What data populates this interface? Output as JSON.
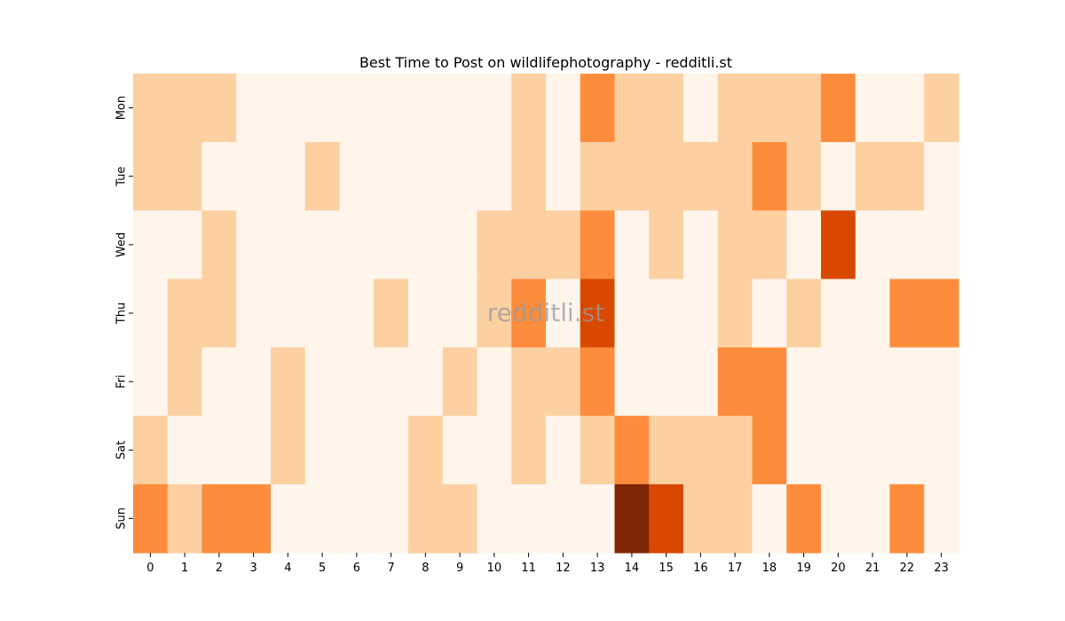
{
  "chart_data": {
    "type": "heatmap",
    "title": "Best Time to Post on wildlifephotography - redditli.st",
    "xlabel": "",
    "ylabel": "",
    "x_categories": [
      "0",
      "1",
      "2",
      "3",
      "4",
      "5",
      "6",
      "7",
      "8",
      "9",
      "10",
      "11",
      "12",
      "13",
      "14",
      "15",
      "16",
      "17",
      "18",
      "19",
      "20",
      "21",
      "22",
      "23"
    ],
    "y_categories": [
      "Mon",
      "Tue",
      "Wed",
      "Thu",
      "Fri",
      "Sat",
      "Sun"
    ],
    "colormap": "Oranges",
    "value_range": [
      0,
      4
    ],
    "values": [
      [
        1,
        1,
        1,
        0,
        0,
        0,
        0,
        0,
        0,
        0,
        0,
        1,
        0,
        2,
        1,
        1,
        0,
        1,
        1,
        1,
        2,
        0,
        0,
        1
      ],
      [
        1,
        1,
        0,
        0,
        0,
        1,
        0,
        0,
        0,
        0,
        0,
        1,
        0,
        1,
        1,
        1,
        1,
        1,
        2,
        1,
        0,
        1,
        1,
        0
      ],
      [
        0,
        0,
        1,
        0,
        0,
        0,
        0,
        0,
        0,
        0,
        1,
        1,
        1,
        2,
        0,
        1,
        0,
        1,
        1,
        0,
        3,
        0,
        0,
        0
      ],
      [
        0,
        1,
        1,
        0,
        0,
        0,
        0,
        1,
        0,
        0,
        1,
        2,
        0,
        3,
        0,
        0,
        0,
        1,
        0,
        1,
        0,
        0,
        2,
        2
      ],
      [
        0,
        1,
        0,
        0,
        1,
        0,
        0,
        0,
        0,
        1,
        0,
        1,
        1,
        2,
        0,
        0,
        0,
        2,
        2,
        0,
        0,
        0,
        0,
        0
      ],
      [
        1,
        0,
        0,
        0,
        1,
        0,
        0,
        0,
        1,
        0,
        0,
        1,
        0,
        1,
        2,
        1,
        1,
        1,
        2,
        0,
        0,
        0,
        0,
        0
      ],
      [
        2,
        1,
        2,
        2,
        0,
        0,
        0,
        0,
        1,
        1,
        0,
        0,
        0,
        0,
        4,
        3,
        1,
        1,
        0,
        2,
        0,
        0,
        2,
        0
      ]
    ],
    "level_colors": [
      "#fff5eb",
      "#fdd0a2",
      "#fd8d3c",
      "#d94801",
      "#7f2704"
    ],
    "watermark": "redditli.st",
    "grid": false,
    "legend": "none"
  }
}
